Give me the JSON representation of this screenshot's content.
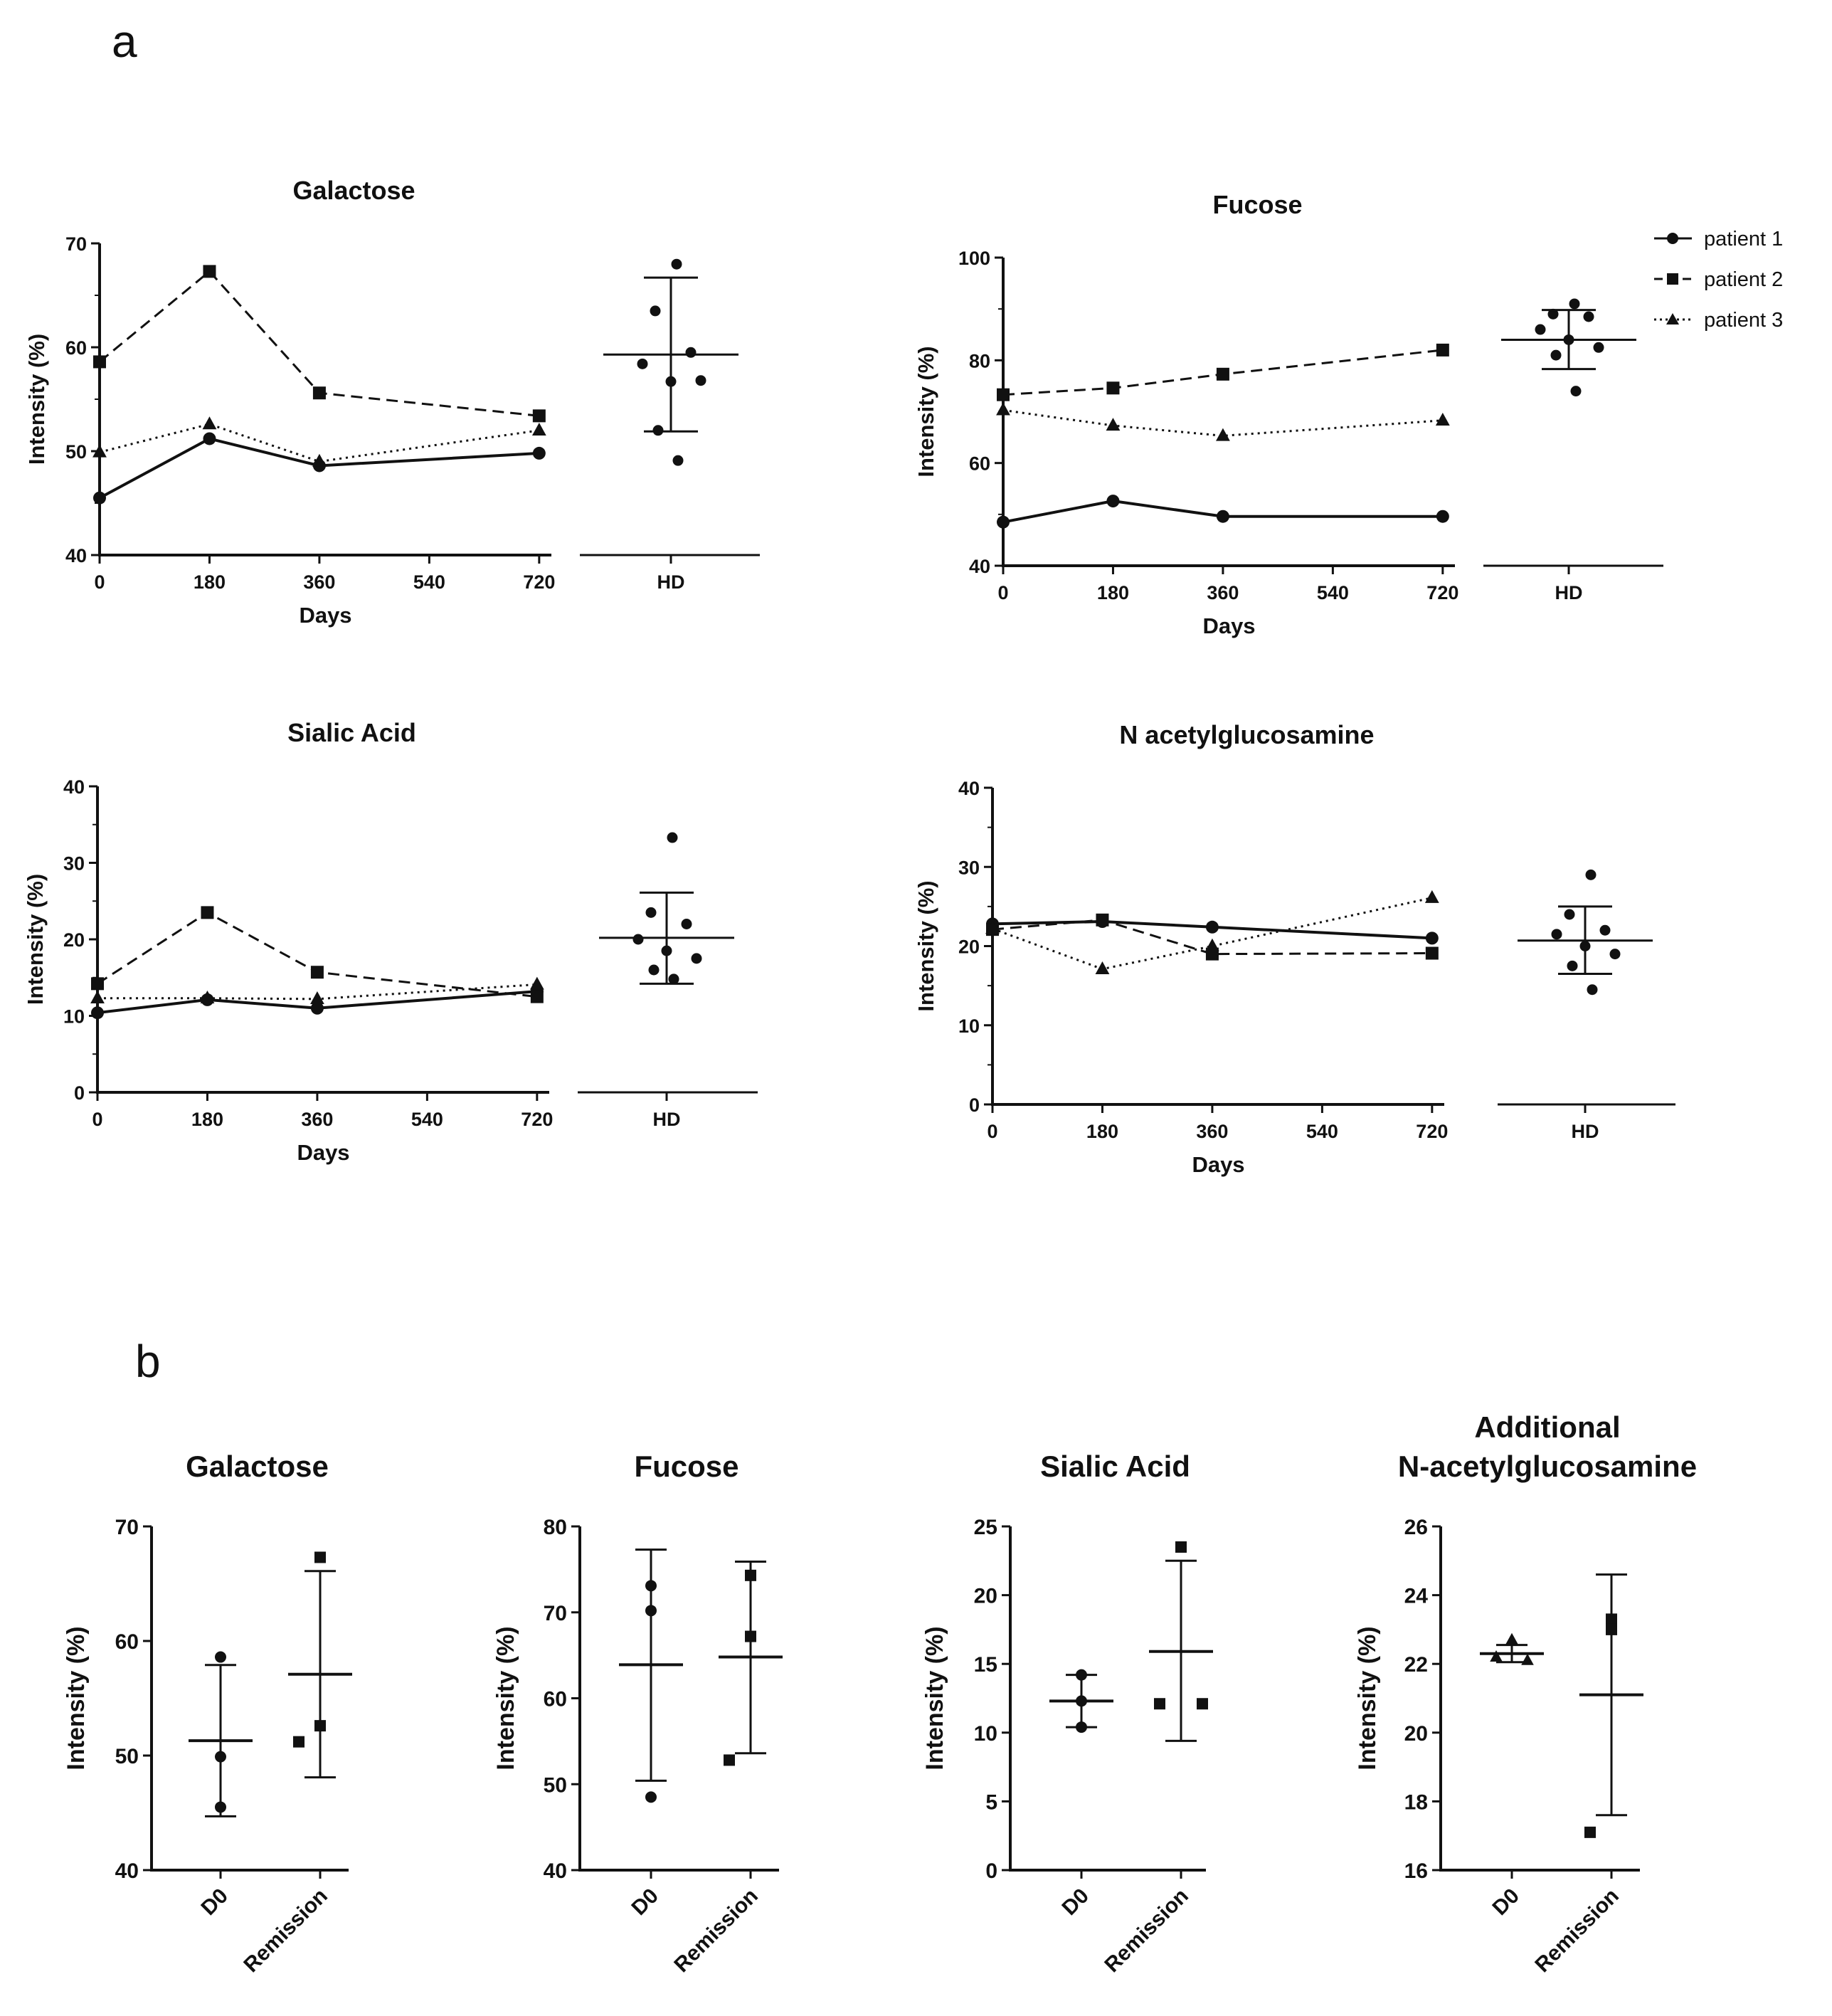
{
  "panel_labels": {
    "a": "a",
    "b": "b"
  },
  "legend": [
    {
      "label": "patient 1",
      "marker": "circle",
      "dash": "solid"
    },
    {
      "label": "patient 2",
      "marker": "square",
      "dash": "dashed"
    },
    {
      "label": "patient 3",
      "marker": "triangle",
      "dash": "dotted"
    }
  ],
  "chart_data": [
    {
      "type": "line",
      "panel": "a",
      "title": "Galactose",
      "xlabel": "Days",
      "ylabel": "Intensity (%)",
      "x_ticks": [
        "0",
        "180",
        "360",
        "540",
        "720"
      ],
      "xlim": [
        0,
        740
      ],
      "ylim": [
        40,
        70
      ],
      "y_ticks": [
        40,
        50,
        60,
        70
      ],
      "hd_label": "HD",
      "series": [
        {
          "name": "patient 1",
          "x": [
            0,
            180,
            360,
            720
          ],
          "y": [
            45.5,
            51.2,
            48.6,
            49.8
          ]
        },
        {
          "name": "patient 2",
          "x": [
            0,
            180,
            360,
            720
          ],
          "y": [
            58.6,
            67.3,
            55.6,
            53.4
          ]
        },
        {
          "name": "patient 3",
          "x": [
            0,
            180,
            360,
            720
          ],
          "y": [
            49.9,
            52.6,
            49.0,
            52.0
          ]
        }
      ],
      "hd": {
        "points": [
          68.0,
          63.5,
          59.5,
          58.4,
          56.7,
          56.8,
          52.0,
          49.1
        ],
        "mean": 59.3,
        "sd_low": 51.9,
        "sd_high": 66.7
      }
    },
    {
      "type": "line",
      "panel": "a",
      "title": "Fucose",
      "xlabel": "Days",
      "ylabel": "Intensity (%)",
      "x_ticks": [
        "0",
        "180",
        "360",
        "540",
        "720"
      ],
      "xlim": [
        0,
        740
      ],
      "ylim": [
        40,
        100
      ],
      "y_ticks": [
        40,
        60,
        80,
        100
      ],
      "hd_label": "HD",
      "series": [
        {
          "name": "patient 1",
          "x": [
            0,
            180,
            360,
            720
          ],
          "y": [
            48.5,
            52.6,
            49.6,
            49.6
          ]
        },
        {
          "name": "patient 2",
          "x": [
            0,
            180,
            360,
            720
          ],
          "y": [
            73.3,
            74.6,
            77.3,
            82.0
          ]
        },
        {
          "name": "patient 3",
          "x": [
            0,
            180,
            360,
            720
          ],
          "y": [
            70.3,
            67.3,
            65.3,
            68.3
          ]
        }
      ],
      "hd": {
        "points": [
          91.0,
          89.0,
          88.5,
          86.0,
          84.0,
          82.5,
          81.0,
          74.0
        ],
        "mean": 84.0,
        "sd_low": 78.3,
        "sd_high": 89.8
      }
    },
    {
      "type": "line",
      "panel": "a",
      "title": "Sialic Acid",
      "xlabel": "Days",
      "ylabel": "Intensity (%)",
      "x_ticks": [
        "0",
        "180",
        "360",
        "540",
        "720"
      ],
      "xlim": [
        0,
        740
      ],
      "ylim": [
        0,
        40
      ],
      "y_ticks": [
        0,
        10,
        20,
        30,
        40
      ],
      "hd_label": "HD",
      "series": [
        {
          "name": "patient 1",
          "x": [
            0,
            180,
            360,
            720
          ],
          "y": [
            10.4,
            12.1,
            11.0,
            13.2
          ]
        },
        {
          "name": "patient 2",
          "x": [
            0,
            180,
            360,
            720
          ],
          "y": [
            14.2,
            23.5,
            15.7,
            12.5
          ]
        },
        {
          "name": "patient 3",
          "x": [
            0,
            180,
            360,
            720
          ],
          "y": [
            12.3,
            12.3,
            12.2,
            14.1
          ]
        }
      ],
      "hd": {
        "points": [
          33.3,
          23.5,
          22.0,
          20.0,
          18.5,
          17.5,
          16.0,
          14.8
        ],
        "mean": 20.2,
        "sd_low": 14.2,
        "sd_high": 26.1
      }
    },
    {
      "type": "line",
      "panel": "a",
      "title": "N acetylglucosamine",
      "xlabel": "Days",
      "ylabel": "Intensity (%)",
      "x_ticks": [
        "0",
        "180",
        "360",
        "540",
        "720"
      ],
      "xlim": [
        0,
        740
      ],
      "ylim": [
        0,
        40
      ],
      "y_ticks": [
        0,
        10,
        20,
        30,
        40
      ],
      "hd_label": "HD",
      "series": [
        {
          "name": "patient 1",
          "x": [
            0,
            180,
            360,
            720
          ],
          "y": [
            22.8,
            23.1,
            22.4,
            21.0
          ]
        },
        {
          "name": "patient 2",
          "x": [
            0,
            180,
            360,
            720
          ],
          "y": [
            22.1,
            23.3,
            19.0,
            19.1
          ]
        },
        {
          "name": "patient 3",
          "x": [
            0,
            180,
            360,
            720
          ],
          "y": [
            22.2,
            17.1,
            20.0,
            26.1
          ]
        }
      ],
      "hd": {
        "points": [
          29.0,
          24.0,
          22.0,
          21.5,
          20.0,
          19.0,
          17.5,
          14.5
        ],
        "mean": 20.7,
        "sd_low": 16.5,
        "sd_high": 25.0
      }
    },
    {
      "type": "scatter",
      "panel": "b",
      "title": "Galactose",
      "ylabel": "Intensity (%)",
      "categories": [
        "D0",
        "Remission"
      ],
      "ylim": [
        40,
        70
      ],
      "y_ticks": [
        40,
        50,
        60,
        70
      ],
      "groups": [
        {
          "points": [
            58.6,
            49.9,
            45.5
          ],
          "marker": "circle",
          "mean": 51.3,
          "sd_low": 44.7,
          "sd_high": 57.9
        },
        {
          "points": [
            67.3,
            52.6,
            51.2
          ],
          "marker": "square",
          "mean": 57.1,
          "sd_low": 48.1,
          "sd_high": 66.1
        }
      ]
    },
    {
      "type": "scatter",
      "panel": "b",
      "title": "Fucose",
      "ylabel": "Intensity (%)",
      "categories": [
        "D0",
        "Remission"
      ],
      "ylim": [
        40,
        80
      ],
      "y_ticks": [
        40,
        50,
        60,
        70,
        80
      ],
      "groups": [
        {
          "points": [
            73.1,
            70.2,
            48.5
          ],
          "marker": "circle",
          "mean": 63.9,
          "sd_low": 50.4,
          "sd_high": 77.3
        },
        {
          "points": [
            74.3,
            67.2,
            52.8
          ],
          "marker": "square",
          "mean": 64.8,
          "sd_low": 53.6,
          "sd_high": 75.9
        }
      ]
    },
    {
      "type": "scatter",
      "panel": "b",
      "title": "Sialic Acid",
      "ylabel": "Intensity (%)",
      "categories": [
        "D0",
        "Remission"
      ],
      "ylim": [
        0,
        25
      ],
      "y_ticks": [
        0,
        5,
        10,
        15,
        20,
        25
      ],
      "groups": [
        {
          "points": [
            14.2,
            12.3,
            10.4
          ],
          "marker": "circle",
          "mean": 12.3,
          "sd_low": 10.4,
          "sd_high": 14.2
        },
        {
          "points": [
            23.5,
            12.1,
            12.1
          ],
          "marker": "square",
          "mean": 15.9,
          "sd_low": 9.4,
          "sd_high": 22.5
        }
      ]
    },
    {
      "type": "scatter",
      "panel": "b",
      "title": "Additional N-acetylglucosamine",
      "title_lines": [
        "Additional",
        "N-acetylglucosamine"
      ],
      "ylabel": "Intensity (%)",
      "categories": [
        "D0",
        "Remission"
      ],
      "ylim": [
        16,
        26
      ],
      "y_ticks": [
        16,
        18,
        20,
        22,
        24,
        26
      ],
      "groups": [
        {
          "points": [
            22.7,
            22.2,
            22.1
          ],
          "marker": "triangle",
          "mean": 22.3,
          "sd_low": 22.05,
          "sd_high": 22.55
        },
        {
          "points": [
            23.3,
            23.0,
            17.1
          ],
          "marker": "square",
          "mean": 21.1,
          "sd_low": 17.6,
          "sd_high": 24.6
        }
      ]
    }
  ]
}
